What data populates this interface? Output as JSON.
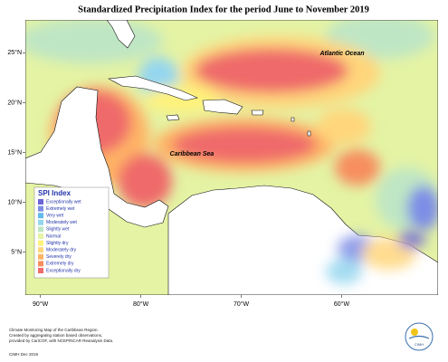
{
  "header": {
    "title": "Standardized Precipitation Index for the period June to November 2019"
  },
  "map": {
    "xlim": [
      -91.5,
      -50.4
    ],
    "ylim": [
      0.7,
      28.3
    ],
    "lon_ticks": [
      {
        "value": -90,
        "label": "90°W"
      },
      {
        "value": -80,
        "label": "80°W"
      },
      {
        "value": -70,
        "label": "70°W"
      },
      {
        "value": -60,
        "label": "60°W"
      }
    ],
    "lat_ticks": [
      {
        "value": 25,
        "label": "25°N"
      },
      {
        "value": 20,
        "label": "20°N"
      },
      {
        "value": 15,
        "label": "15°N"
      },
      {
        "value": 10,
        "label": "10°N"
      },
      {
        "value": 5,
        "label": "5°N"
      }
    ],
    "labels": [
      "Atlantic Ocean",
      "Caribbean Sea"
    ]
  },
  "legend": {
    "title": "SPI Index",
    "items": [
      {
        "label": "Exceptionally wet",
        "color": "#6a64d8"
      },
      {
        "label": "Extremely wet",
        "color": "#7d8de6"
      },
      {
        "label": "Very wet",
        "color": "#62b9ec"
      },
      {
        "label": "Moderately wet",
        "color": "#94d6ef"
      },
      {
        "label": "Slightly wet",
        "color": "#bfe6c4"
      },
      {
        "label": "Normal",
        "color": "#e4f3a4"
      },
      {
        "label": "Slightly dry",
        "color": "#fff27c"
      },
      {
        "label": "Moderately dry",
        "color": "#ffd67c"
      },
      {
        "label": "Severely dry",
        "color": "#ffb466"
      },
      {
        "label": "Extremely dry",
        "color": "#f78e5e"
      },
      {
        "label": "Exceptionally dry",
        "color": "#ef6b6b"
      }
    ]
  },
  "footer": {
    "notes": [
      "Climate Monitoring Map of the Caribbean Region.",
      "Created by aggregating station based observations,",
      "provided by CariCOF, with NCEP/NCAR Reanalysis Data."
    ],
    "credit": "CIMH Dec 2019",
    "logo": "CIMH"
  }
}
